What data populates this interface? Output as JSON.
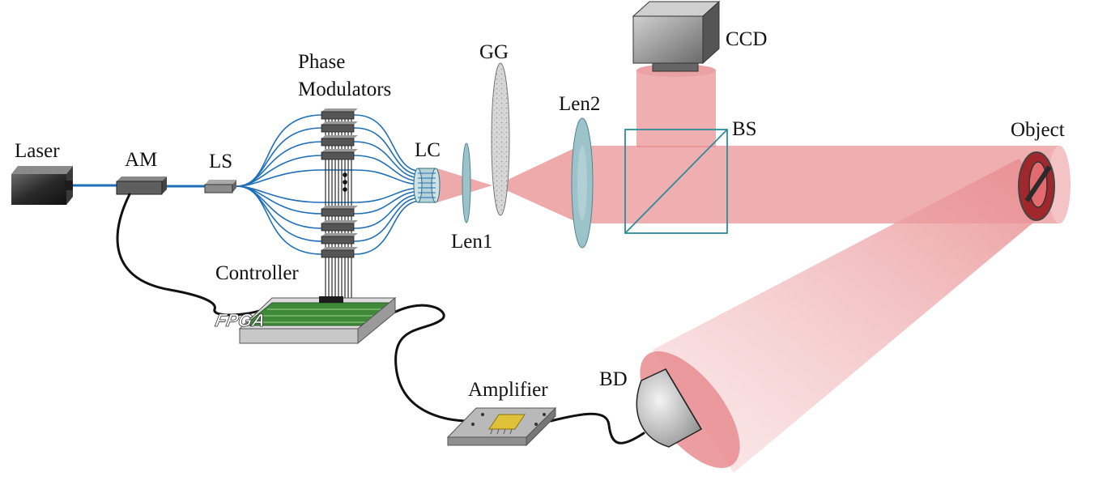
{
  "labels": {
    "laser": "Laser",
    "am": "AM",
    "ls": "LS",
    "phase_modulators_line1": "Phase",
    "phase_modulators_line2": "Modulators",
    "lc": "LC",
    "len1": "Len1",
    "gg": "GG",
    "len2": "Len2",
    "ccd": "CCD",
    "bs": "BS",
    "object": "Object",
    "controller": "Controller",
    "fpga": "FPGA",
    "amplifier": "Amplifier",
    "bd": "BD"
  },
  "colors": {
    "beam": "#e88c8f",
    "beam_dark": "#c0262c",
    "fiber": "#1f6fb8",
    "splitter_cube": "#2b8c9a",
    "lens": "#9cc3c9",
    "cable": "#111111"
  }
}
